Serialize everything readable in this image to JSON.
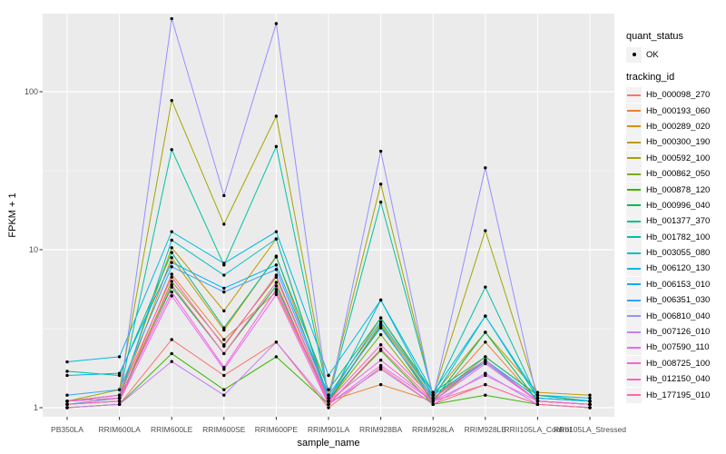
{
  "figure": {
    "y_axis": {
      "title": "FPKM + 1",
      "tick_labels": [
        "100",
        "10",
        "1"
      ],
      "tick_values": [
        100,
        10,
        1
      ]
    },
    "x_axis": {
      "title": "sample_name"
    },
    "legend": {
      "quant_status_title": "quant_status",
      "ok_label": "OK",
      "tracking_title": "tracking_id"
    }
  },
  "chart_data": {
    "type": "line",
    "title": "",
    "xlabel": "sample_name",
    "ylabel": "FPKM + 1",
    "y_scale": "log10",
    "ylim": [
      0.88,
      312
    ],
    "y_major_ticks": [
      1,
      10,
      100
    ],
    "y_minor_ticks": [
      3.162,
      31.62
    ],
    "grid": true,
    "legend_position": "right",
    "panel_bg": "#EBEBEB",
    "grid_color": "#FFFFFF",
    "point_marker_color": "#000000",
    "quant_status": "OK",
    "x_categories": [
      "PB350LA",
      "RRIM600LA",
      "RRIM600LE",
      "RRIM600SE",
      "RRIM600PE",
      "RRIM901LA",
      "RRIM928BA",
      "RRIM928LA",
      "RRIM928LE",
      "RRII105LA_Control",
      "RRII105LA_Stressed"
    ],
    "series": [
      {
        "name": "Hb_000098_270",
        "color": "#F8766D",
        "values": [
          1.0,
          1.05,
          2.7,
          1.6,
          2.6,
          1.0,
          1.8,
          1.05,
          1.4,
          1.05,
          1.0
        ]
      },
      {
        "name": "Hb_000193_060",
        "color": "#EA8331",
        "values": [
          1.05,
          1.1,
          7.0,
          2.7,
          5.4,
          1.1,
          1.4,
          1.1,
          2.6,
          1.1,
          1.05
        ]
      },
      {
        "name": "Hb_000289_020",
        "color": "#D89000",
        "values": [
          1.1,
          1.15,
          8.9,
          3.1,
          9.1,
          1.1,
          3.4,
          1.15,
          2.1,
          1.2,
          1.1
        ]
      },
      {
        "name": "Hb_000300_190",
        "color": "#C09B00",
        "values": [
          1.1,
          1.2,
          10.3,
          4.1,
          11.7,
          1.15,
          3.7,
          1.2,
          3.0,
          1.25,
          1.2
        ]
      },
      {
        "name": "Hb_000592_100",
        "color": "#A3A500",
        "values": [
          1.1,
          1.3,
          88.0,
          14.5,
          70.0,
          1.2,
          26.0,
          1.2,
          13.2,
          1.2,
          1.1
        ]
      },
      {
        "name": "Hb_000862_050",
        "color": "#7CAE00",
        "values": [
          1.05,
          1.1,
          6.3,
          2.5,
          6.7,
          1.1,
          2.9,
          1.1,
          2.0,
          1.1,
          1.05
        ]
      },
      {
        "name": "Hb_000878_120",
        "color": "#39B600",
        "values": [
          1.0,
          1.05,
          2.2,
          1.3,
          2.1,
          1.05,
          2.3,
          1.05,
          1.2,
          1.05,
          1.0
        ]
      },
      {
        "name": "Hb_000996_040",
        "color": "#00BB4E",
        "values": [
          1.05,
          1.15,
          5.8,
          2.2,
          5.9,
          1.1,
          3.3,
          1.1,
          3.0,
          1.1,
          1.05
        ]
      },
      {
        "name": "Hb_001377_370",
        "color": "#00BF7D",
        "values": [
          1.7,
          1.6,
          9.6,
          3.2,
          9.0,
          1.3,
          3.7,
          1.25,
          2.1,
          1.2,
          1.1
        ]
      },
      {
        "name": "Hb_001782_100",
        "color": "#00C1A3",
        "values": [
          1.1,
          1.2,
          43.0,
          8.0,
          45.0,
          1.15,
          20.0,
          1.2,
          5.8,
          1.15,
          1.1
        ]
      },
      {
        "name": "Hb_003055_080",
        "color": "#00BFC4",
        "values": [
          1.1,
          1.15,
          11.5,
          6.9,
          11.7,
          1.1,
          4.8,
          1.15,
          3.8,
          1.15,
          1.1
        ]
      },
      {
        "name": "Hb_006120_130",
        "color": "#00BAE0",
        "values": [
          1.95,
          2.1,
          13.0,
          8.2,
          13.0,
          1.6,
          4.8,
          1.25,
          3.8,
          1.2,
          1.15
        ]
      },
      {
        "name": "Hb_006153_010",
        "color": "#00B0F6",
        "values": [
          1.6,
          1.65,
          8.3,
          5.7,
          8.0,
          1.2,
          3.5,
          1.2,
          2.0,
          1.15,
          1.1
        ]
      },
      {
        "name": "Hb_006351_030",
        "color": "#35A2FF",
        "values": [
          1.2,
          1.3,
          7.8,
          5.4,
          7.5,
          1.15,
          3.2,
          1.15,
          1.95,
          1.1,
          1.05
        ]
      },
      {
        "name": "Hb_006810_040",
        "color": "#9590FF",
        "values": [
          1.05,
          1.15,
          290.0,
          22.0,
          270.0,
          1.1,
          42.0,
          1.15,
          33.0,
          1.1,
          1.05
        ]
      },
      {
        "name": "Hb_007126_010",
        "color": "#C77CFF",
        "values": [
          1.0,
          1.05,
          1.96,
          1.2,
          2.6,
          1.05,
          1.75,
          1.05,
          1.65,
          1.05,
          1.0
        ]
      },
      {
        "name": "Hb_007590_110",
        "color": "#E76BF3",
        "values": [
          1.05,
          1.1,
          5.1,
          1.75,
          5.2,
          1.05,
          1.85,
          1.1,
          1.6,
          1.1,
          1.05
        ]
      },
      {
        "name": "Hb_008725_100",
        "color": "#FA62DB",
        "values": [
          1.1,
          1.15,
          5.4,
          1.8,
          5.6,
          1.1,
          2.0,
          1.1,
          1.9,
          1.1,
          1.05
        ]
      },
      {
        "name": "Hb_012150_040",
        "color": "#FF61C3",
        "values": [
          1.1,
          1.2,
          6.7,
          2.45,
          6.9,
          1.1,
          2.5,
          1.15,
          2.0,
          1.1,
          1.05
        ]
      },
      {
        "name": "Hb_177195_010",
        "color": "#FF67A4",
        "values": [
          1.05,
          1.1,
          6.0,
          2.2,
          6.2,
          1.05,
          2.35,
          1.1,
          1.4,
          1.05,
          1.0
        ]
      }
    ]
  }
}
